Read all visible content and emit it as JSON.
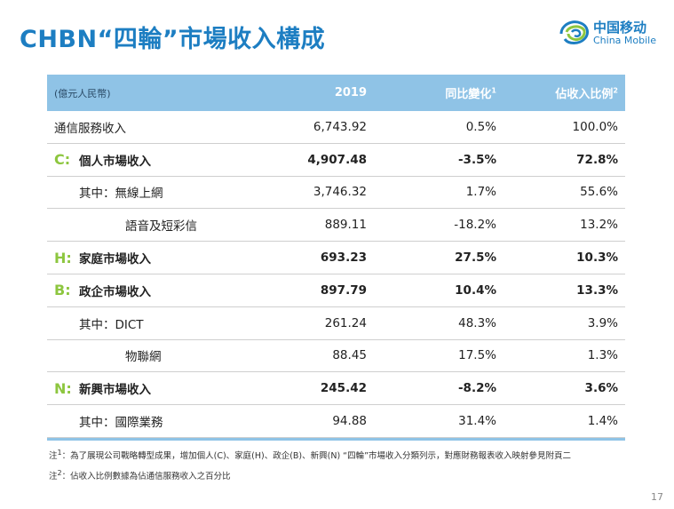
{
  "title": "CHBN“四輪”市場收入構成",
  "logo": {
    "cn": "中国移动",
    "en": "China Mobile",
    "brand_color": "#1d7ec2"
  },
  "table": {
    "header": {
      "unit": "(億元人民幣)",
      "col1": "2019",
      "col2": "同比變化",
      "col2_sup": "1",
      "col3": "佔收入比例",
      "col3_sup": "2"
    },
    "rows": [
      {
        "prefix": "",
        "label": "通信服務收入",
        "v2019": "6,743.92",
        "yoy": "0.5%",
        "share": "100.0%",
        "bold": false,
        "indent": 0
      },
      {
        "prefix": "C:",
        "label": "個人市場收入",
        "v2019": "4,907.48",
        "yoy": "-3.5%",
        "share": "72.8%",
        "bold": true,
        "indent": 0
      },
      {
        "prefix": "",
        "label": "其中：無線上網",
        "v2019": "3,746.32",
        "yoy": "1.7%",
        "share": "55.6%",
        "bold": false,
        "indent": 1
      },
      {
        "prefix": "",
        "label": "語音及短彩信",
        "v2019": "889.11",
        "yoy": "-18.2%",
        "share": "13.2%",
        "bold": false,
        "indent": 2
      },
      {
        "prefix": "H:",
        "label": "家庭市場收入",
        "v2019": "693.23",
        "yoy": "27.5%",
        "share": "10.3%",
        "bold": true,
        "indent": 0
      },
      {
        "prefix": "B:",
        "label": "政企市場收入",
        "v2019": "897.79",
        "yoy": "10.4%",
        "share": "13.3%",
        "bold": true,
        "indent": 0
      },
      {
        "prefix": "",
        "label": "其中：DICT",
        "v2019": "261.24",
        "yoy": "48.3%",
        "share": "3.9%",
        "bold": false,
        "indent": 1
      },
      {
        "prefix": "",
        "label": "物聯網",
        "v2019": "88.45",
        "yoy": "17.5%",
        "share": "1.3%",
        "bold": false,
        "indent": 3
      },
      {
        "prefix": "N:",
        "label": "新興市場收入",
        "v2019": "245.42",
        "yoy": "-8.2%",
        "share": "3.6%",
        "bold": true,
        "indent": 0
      },
      {
        "prefix": "",
        "label": "其中：國際業務",
        "v2019": "94.88",
        "yoy": "31.4%",
        "share": "1.4%",
        "bold": false,
        "indent": 1
      }
    ]
  },
  "notes": {
    "n1_marker": "注",
    "n1_sup": "1",
    "n1_text": "：為了展現公司戰略轉型成果，增加個人(C)、家庭(H)、政企(B)、新興(N) “四輪”市場收入分類列示，對應財務報表收入映射參見附頁二",
    "n2_marker": "注",
    "n2_sup": "2",
    "n2_text": "：佔收入比例數據為佔通信服務收入之百分比"
  },
  "page_number": "17"
}
